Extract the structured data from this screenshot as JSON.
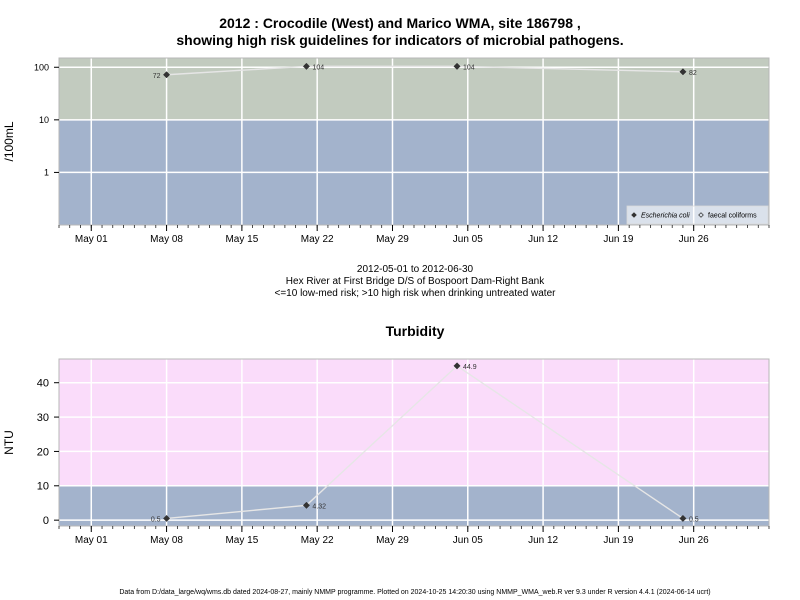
{
  "colors": {
    "panel_border": "#b7b7b7",
    "grid": "#ffffff",
    "band_low_risk": "#a3b3cc",
    "band_high_risk_micro": "#c2cbbf",
    "band_high_risk_turb": "#fadcfa",
    "series_line": "#e6e6e6",
    "marker": "#333333"
  },
  "chart_data": [
    {
      "type": "line",
      "title": "2012 : Crocodile (West) and Marico WMA, site 186798 , showing high risk guidelines for indicators of microbial pathogens.",
      "title_line1": "2012 : Crocodile (West) and Marico WMA, site 186798 ,",
      "title_line2": "showing high risk guidelines for indicators of microbial pathogens.",
      "xlabel": "",
      "ylabel": "/100mL",
      "y_scale": "log10",
      "ylim": [
        0.1,
        150
      ],
      "yticks": [
        1,
        10,
        100
      ],
      "ytick_labels": [
        "1",
        "10",
        "100"
      ],
      "xlim": [
        "2012-04-28",
        "2012-07-03"
      ],
      "xticks": [
        "2012-05-01",
        "2012-05-08",
        "2012-05-15",
        "2012-05-22",
        "2012-05-29",
        "2012-06-05",
        "2012-06-12",
        "2012-06-19",
        "2012-06-26"
      ],
      "xtick_labels": [
        "May 01",
        "May 08",
        "May 15",
        "May 22",
        "May 29",
        "Jun 05",
        "Jun 12",
        "Jun 19",
        "Jun 26"
      ],
      "grid": true,
      "bands": [
        {
          "from": 0.1,
          "to": 10,
          "color": "#a3b3cc"
        },
        {
          "from": 10,
          "to": 150,
          "color": "#c2cbbf"
        }
      ],
      "legend_position": "bottom-right",
      "legend": [
        {
          "label": "Escherichia coli",
          "marker": "filled-diamond",
          "italic": true
        },
        {
          "label": "faecal coliforms",
          "marker": "open-diamond",
          "italic": false
        }
      ],
      "series": [
        {
          "name": "Escherichia coli",
          "x": [
            "2012-05-08",
            "2012-05-21",
            "2012-06-04",
            "2012-06-25"
          ],
          "y": [
            72,
            104,
            104,
            82
          ],
          "labels": [
            "72",
            "104",
            "104",
            "82"
          ],
          "label_side": [
            "left",
            "right",
            "right",
            "right"
          ]
        }
      ]
    },
    {
      "type": "line",
      "title": "Turbidity",
      "xlabel": "",
      "ylabel": "NTU",
      "y_scale": "linear",
      "ylim": [
        -1.7,
        46.9
      ],
      "yticks": [
        0,
        10,
        20,
        30,
        40
      ],
      "ytick_labels": [
        "0",
        "10",
        "20",
        "30",
        "40"
      ],
      "xlim": [
        "2012-04-28",
        "2012-07-03"
      ],
      "xticks": [
        "2012-05-01",
        "2012-05-08",
        "2012-05-15",
        "2012-05-22",
        "2012-05-29",
        "2012-06-05",
        "2012-06-12",
        "2012-06-19",
        "2012-06-26"
      ],
      "xtick_labels": [
        "May 01",
        "May 08",
        "May 15",
        "May 22",
        "May 29",
        "Jun 05",
        "Jun 12",
        "Jun 19",
        "Jun 26"
      ],
      "grid": true,
      "bands": [
        {
          "from": -1.7,
          "to": 10,
          "color": "#a3b3cc"
        },
        {
          "from": 10,
          "to": 46.9,
          "color": "#fadcfa"
        }
      ],
      "series": [
        {
          "name": "",
          "x": [
            "2012-05-08",
            "2012-05-21",
            "2012-06-04",
            "2012-06-25"
          ],
          "y": [
            0.5,
            4.32,
            44.9,
            0.5
          ],
          "labels": [
            "0.5",
            "4.32",
            "44.9",
            "0.5"
          ],
          "label_side": [
            "left",
            "right",
            "right",
            "right"
          ]
        }
      ]
    }
  ],
  "captions": {
    "date_range": "2012-05-01 to 2012-06-30",
    "site": "Hex River at First Bridge D/S of Bospoort Dam-Right Bank",
    "risk_note": "<=10 low-med risk; >10 high risk when drinking untreated water"
  },
  "footer": "Data from D:/data_large/wq/wms.db dated 2024-08-27, mainly NMMP programme. Plotted on 2024-10-25 14:20:30 using NMMP_WMA_web.R ver 9.3 under R version 4.4.1 (2024-06-14 ucrt)"
}
